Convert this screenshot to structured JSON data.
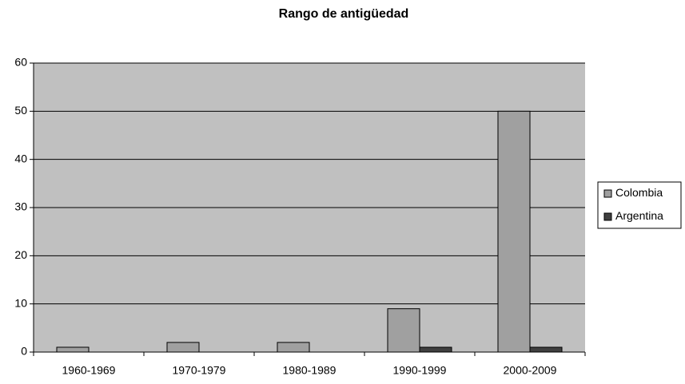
{
  "chart_data": {
    "type": "bar",
    "title": "Rango de antigüedad",
    "categories": [
      "1960-1969",
      "1970-1979",
      "1980-1989",
      "1990-1999",
      "2000-2009"
    ],
    "series": [
      {
        "name": "Colombia",
        "color": "#a0a0a0",
        "values": [
          1,
          2,
          2,
          9,
          50
        ]
      },
      {
        "name": "Argentina",
        "color": "#404040",
        "values": [
          0,
          0,
          0,
          1,
          1
        ]
      }
    ],
    "ylim": [
      0,
      60
    ],
    "yticks": [
      0,
      10,
      20,
      30,
      40,
      50,
      60
    ],
    "grid": true,
    "legend": "right",
    "plot_background": "#c0c0c0"
  }
}
